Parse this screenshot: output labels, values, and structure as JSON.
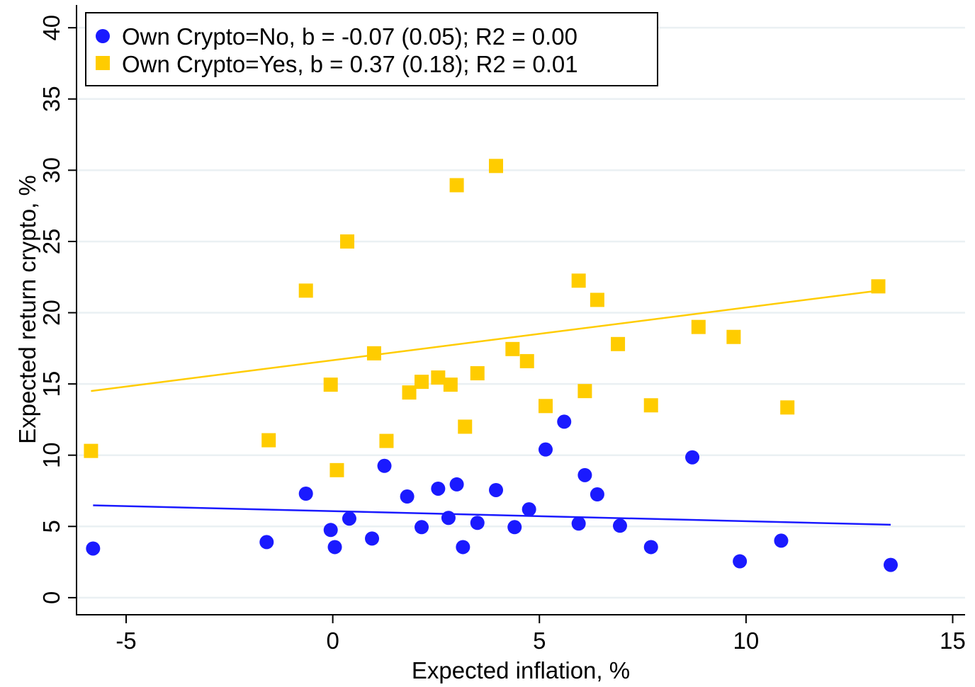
{
  "chart_data": {
    "type": "scatter",
    "xlabel": "Expected inflation, %",
    "ylabel": "Expected return crypto, %",
    "xlim": [
      -6.2,
      15.3
    ],
    "ylim": [
      -1.2,
      41.6
    ],
    "xticks": [
      -5,
      0,
      5,
      10,
      15
    ],
    "yticks": [
      0,
      5,
      10,
      15,
      20,
      25,
      30,
      35,
      40
    ],
    "grid": true,
    "legend_position": "top-left",
    "series": [
      {
        "name": "Own Crypto=No, b = -0.07 (0.05); R2 = 0.00",
        "marker": "circle",
        "color": "#1a1aff",
        "x": [
          -5.8,
          -1.6,
          -0.65,
          -0.05,
          0.05,
          0.4,
          0.95,
          1.25,
          1.8,
          2.15,
          2.55,
          2.8,
          3.0,
          3.15,
          3.5,
          3.95,
          4.4,
          4.75,
          5.15,
          5.6,
          5.95,
          6.1,
          6.4,
          6.95,
          7.7,
          8.7,
          9.85,
          10.85,
          13.5
        ],
        "y": [
          3.45,
          3.9,
          7.3,
          4.75,
          3.55,
          5.55,
          4.15,
          9.25,
          7.1,
          4.95,
          7.65,
          5.6,
          7.95,
          3.55,
          5.25,
          7.55,
          4.95,
          6.2,
          10.4,
          12.35,
          5.2,
          8.6,
          7.25,
          5.05,
          3.55,
          9.85,
          2.55,
          4.0,
          2.3
        ],
        "fit": {
          "x": [
            -5.8,
            13.5
          ],
          "y": [
            6.48,
            5.12
          ]
        }
      },
      {
        "name": "Own Crypto=Yes, b = 0.37 (0.18); R2 = 0.01",
        "marker": "square",
        "color": "#ffcc00",
        "x": [
          -5.85,
          -1.55,
          -0.65,
          -0.05,
          0.1,
          0.35,
          1.0,
          1.3,
          1.85,
          2.15,
          2.55,
          2.85,
          3.0,
          3.2,
          3.5,
          3.95,
          4.35,
          4.7,
          5.15,
          5.95,
          6.1,
          6.4,
          6.9,
          7.7,
          8.85,
          9.7,
          11.0,
          13.2
        ],
        "y": [
          10.3,
          11.05,
          21.55,
          14.95,
          8.95,
          25.0,
          17.15,
          11.0,
          14.4,
          15.15,
          15.45,
          14.95,
          28.95,
          12.0,
          15.75,
          30.3,
          17.45,
          16.6,
          13.45,
          22.25,
          14.5,
          20.9,
          17.8,
          13.5,
          19.0,
          18.3,
          13.35,
          21.85
        ],
        "fit": {
          "x": [
            -5.85,
            13.2
          ],
          "y": [
            14.5,
            21.55
          ]
        }
      }
    ]
  }
}
